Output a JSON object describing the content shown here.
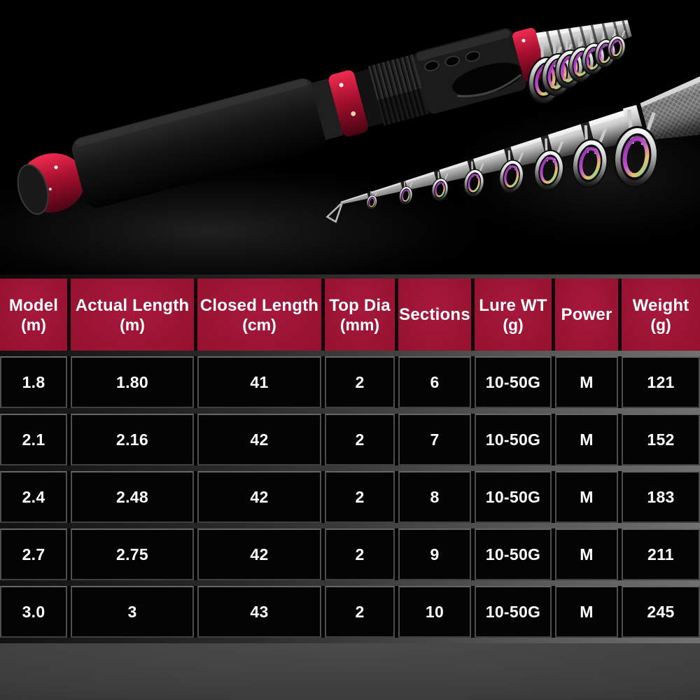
{
  "photo": {
    "subject": "telescopic-fishing-rod-product-photo",
    "background": "#000000",
    "accent_red": "#c01535",
    "blank_silver": "#cfcfcf",
    "guide_iridescent": "#b14fd8"
  },
  "table": {
    "header_bg": "#99122f",
    "columns": [
      {
        "label": "Model",
        "unit": "(m)"
      },
      {
        "label": "Actual Length",
        "unit": "(m)"
      },
      {
        "label": "Closed Length",
        "unit": "(cm)"
      },
      {
        "label": "Top Dia",
        "unit": "(mm)"
      },
      {
        "label": "Sections",
        "unit": ""
      },
      {
        "label": "Lure WT",
        "unit": "(g)"
      },
      {
        "label": "Power",
        "unit": ""
      },
      {
        "label": "Weight",
        "unit": "(g)"
      }
    ],
    "rows": [
      [
        "1.8",
        "1.80",
        "41",
        "2",
        "6",
        "10-50G",
        "M",
        "121"
      ],
      [
        "2.1",
        "2.16",
        "42",
        "2",
        "7",
        "10-50G",
        "M",
        "152"
      ],
      [
        "2.4",
        "2.48",
        "42",
        "2",
        "8",
        "10-50G",
        "M",
        "183"
      ],
      [
        "2.7",
        "2.75",
        "42",
        "2",
        "9",
        "10-50G",
        "M",
        "211"
      ],
      [
        "3.0",
        "3",
        "43",
        "2",
        "10",
        "10-50G",
        "M",
        "245"
      ]
    ]
  }
}
